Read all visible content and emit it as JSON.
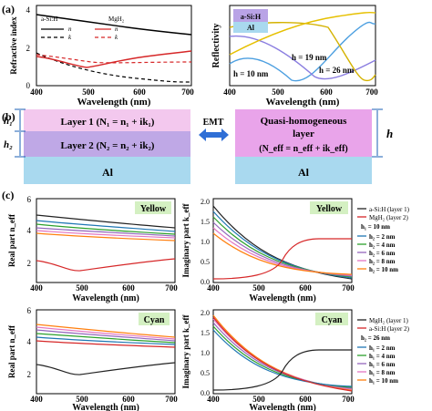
{
  "figure": {
    "panel_labels": [
      "(a)",
      "(b)",
      "(c)"
    ]
  },
  "panel_a": {
    "left": {
      "ylabel": "Refractive index",
      "xlabel": "Wavelength (nm)",
      "xticks": [
        "400",
        "500",
        "600",
        "700"
      ],
      "yticks": [
        "0",
        "2",
        "4"
      ],
      "legend": {
        "materials": [
          "a-Si:H",
          "MgH₂"
        ],
        "symbols": [
          "n",
          "k",
          "n",
          "k"
        ]
      }
    },
    "right": {
      "ylabel": "Reflectivity",
      "xlabel": "Wavelength (nm)",
      "xticks": [
        "400",
        "500",
        "600",
        "700"
      ],
      "inset": {
        "top": "a-Si:H",
        "bottom": "Al"
      },
      "annotations": [
        "h = 19 nm",
        "h = 10 nm",
        "h = 26 nm"
      ]
    }
  },
  "panel_b": {
    "h1": "h₁",
    "h2": "h₂",
    "layer1": "Layer 1 (N₁ = n₁ + ik₁)",
    "layer2": "Layer 2 (N₂ = n₂ + ik₂)",
    "al": "Al",
    "emt": "EMT",
    "quasi_line1": "Quasi-homogeneous",
    "quasi_line2": "layer",
    "quasi_line3": "(N_eff = n_eff + ik_eff)",
    "al_right": "Al",
    "h": "h",
    "colors": {
      "layer1": "#f3c8ee",
      "layer2": "#bfa8e6",
      "al": "#a9d9ef",
      "quasi": "#e9a4ea",
      "arrow": "#2f6fd6"
    }
  },
  "panel_c": {
    "badge_yellow": "Yellow",
    "badge_cyan": "Cyan",
    "ylabel_real": "Real part n_eff",
    "ylabel_imag": "Imaginary part k_eff",
    "xlabel": "Wavelength (nm)",
    "xticks": [
      "400",
      "500",
      "600",
      "700"
    ],
    "yticks_real": [
      "2",
      "4",
      "6"
    ],
    "yticks_imag": [
      "0.0",
      "0.5",
      "1.0",
      "1.5",
      "2.0"
    ],
    "legend_yellow": {
      "lines": [
        "a-Si:H (layer 1)",
        "MgH₂ (layer 2)"
      ],
      "fixed": "h₁ = 10 nm",
      "items": [
        "h₂ = 2 nm",
        "h₂ = 4 nm",
        "h₂ = 6 nm",
        "h₂ = 8 nm",
        "h₂ = 10 nm"
      ]
    },
    "legend_cyan": {
      "lines": [
        "MgH₂ (layer 1)",
        "a-Si:H (layer 2)"
      ],
      "fixed": "h₂ = 26 nm",
      "items": [
        "h₁ = 2 nm",
        "h₁ = 4 nm",
        "h₁ = 6 nm",
        "h₁ = 8 nm",
        "h₁ = 10 nm"
      ]
    },
    "series_colors": [
      "#222222",
      "#d62728",
      "#1f77b4",
      "#2ca02c",
      "#9467bd",
      "#e377c2",
      "#ff7f0e"
    ]
  }
}
